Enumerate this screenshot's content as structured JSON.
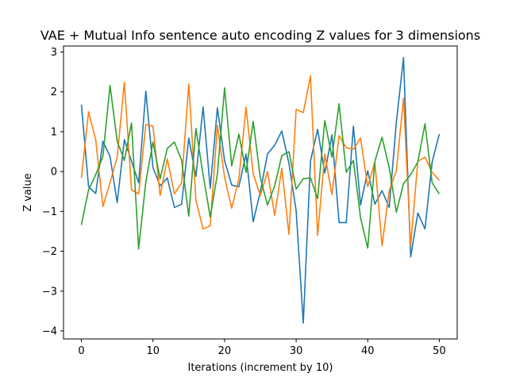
{
  "chart_data": {
    "type": "line",
    "title": "VAE + Mutual Info sentence auto encoding Z values for 3 dimensions",
    "xlabel": "Iterations (increment by 10)",
    "ylabel": "Z value",
    "xlim": [
      -2.5,
      52.5
    ],
    "ylim": [
      -4.2,
      3.15
    ],
    "xticks": [
      0,
      10,
      20,
      30,
      40,
      50
    ],
    "yticks": [
      -4,
      -3,
      -2,
      -1,
      0,
      1,
      2,
      3
    ],
    "xtick_labels": [
      "0",
      "10",
      "20",
      "30",
      "40",
      "50"
    ],
    "ytick_labels": [
      "−4",
      "−3",
      "−2",
      "−1",
      "0",
      "1",
      "2",
      "3"
    ],
    "grid": false,
    "legend": "none",
    "x": [
      0,
      1,
      2,
      3,
      4,
      5,
      6,
      7,
      8,
      9,
      10,
      11,
      12,
      13,
      14,
      15,
      16,
      17,
      18,
      19,
      20,
      21,
      22,
      23,
      24,
      25,
      26,
      27,
      28,
      29,
      30,
      31,
      32,
      33,
      34,
      35,
      36,
      37,
      38,
      39,
      40,
      41,
      42,
      43,
      44,
      45,
      46,
      47,
      48,
      49,
      50
    ],
    "series": [
      {
        "color": "#1f77b4",
        "values": [
          1.68,
          -0.38,
          -0.55,
          0.76,
          0.38,
          -0.78,
          0.8,
          0.26,
          -0.28,
          2.02,
          0.1,
          -0.36,
          -0.16,
          -0.9,
          -0.82,
          0.84,
          -0.12,
          1.62,
          -0.42,
          1.6,
          0.28,
          -0.34,
          -0.38,
          0.44,
          -1.26,
          -0.5,
          0.44,
          0.66,
          1.02,
          0.2,
          -0.98,
          -3.8,
          0.26,
          1.06,
          -0.04,
          0.92,
          -1.28,
          -1.28,
          1.14,
          -0.84,
          0.02,
          -0.82,
          -0.48,
          -0.9,
          1.24,
          2.86,
          -2.14,
          -1.04,
          -1.44,
          0.24,
          0.94
        ]
      },
      {
        "color": "#ff7f0e",
        "values": [
          -0.16,
          1.5,
          0.8,
          -0.88,
          -0.28,
          0.36,
          2.24,
          -0.46,
          -0.56,
          1.18,
          1.14,
          -0.6,
          0.32,
          -0.56,
          -0.28,
          2.2,
          -0.72,
          -1.44,
          -1.36,
          1.16,
          -0.14,
          -0.92,
          -0.18,
          1.62,
          -0.06,
          -0.6,
          0.0,
          -1.1,
          0.08,
          -1.58,
          1.56,
          1.48,
          2.4,
          -1.6,
          0.44,
          -0.58,
          0.9,
          0.6,
          0.56,
          0.84,
          -0.38,
          0.24,
          -1.86,
          -0.48,
          0.02,
          1.84,
          -1.86,
          0.26,
          0.36,
          -0.02,
          -0.22
        ]
      },
      {
        "color": "#2ca02c",
        "values": [
          -1.34,
          -0.46,
          -0.08,
          0.38,
          2.16,
          0.76,
          0.28,
          1.22,
          -1.94,
          -0.26,
          0.74,
          -0.18,
          0.58,
          0.74,
          0.28,
          -1.12,
          1.08,
          -0.08,
          -1.14,
          -0.06,
          2.1,
          0.14,
          0.94,
          -0.02,
          1.26,
          -0.16,
          -0.84,
          -0.36,
          0.4,
          0.5,
          -0.44,
          -0.18,
          -0.16,
          -0.68,
          1.28,
          0.36,
          1.7,
          -0.02,
          0.28,
          -1.16,
          -1.92,
          0.26,
          0.86,
          0.1,
          -1.02,
          -0.3,
          -0.08,
          0.24,
          1.2,
          -0.28,
          -0.56
        ]
      }
    ]
  }
}
